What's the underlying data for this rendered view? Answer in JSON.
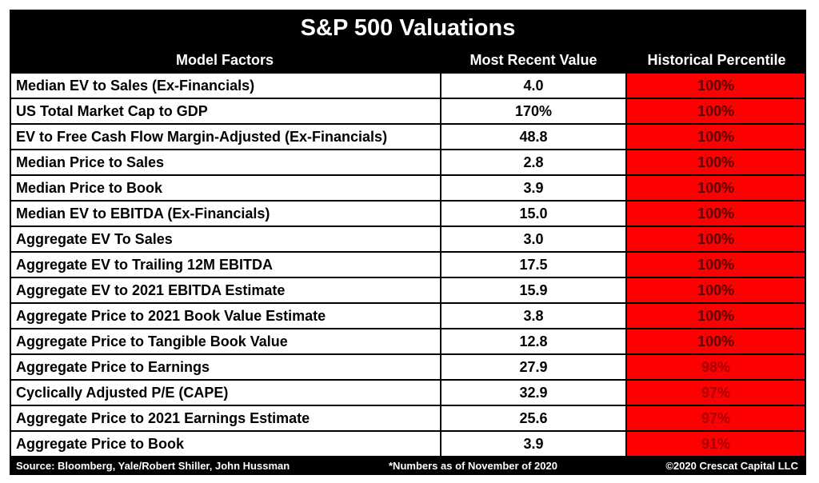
{
  "title": "S&P 500 Valuations",
  "headers": {
    "factor": "Model Factors",
    "value": "Most Recent Value",
    "percentile": "Historical Percentile"
  },
  "rows": [
    {
      "factor": "Median EV to Sales (Ex-Financials)",
      "value": "4.0",
      "percentile": "100%"
    },
    {
      "factor": "US Total Market Cap to GDP",
      "value": "170%",
      "percentile": "100%"
    },
    {
      "factor": "EV to Free Cash Flow Margin-Adjusted (Ex-Financials)",
      "value": "48.8",
      "percentile": "100%"
    },
    {
      "factor": "Median Price to Sales",
      "value": "2.8",
      "percentile": "100%"
    },
    {
      "factor": "Median Price to Book",
      "value": "3.9",
      "percentile": "100%"
    },
    {
      "factor": "Median EV to EBITDA (Ex-Financials)",
      "value": "15.0",
      "percentile": "100%"
    },
    {
      "factor": "Aggregate EV To Sales",
      "value": "3.0",
      "percentile": "100%"
    },
    {
      "factor": "Aggregate EV to Trailing 12M EBITDA",
      "value": "17.5",
      "percentile": "100%"
    },
    {
      "factor": "Aggregate EV to 2021 EBITDA Estimate",
      "value": "15.9",
      "percentile": "100%"
    },
    {
      "factor": "Aggregate Price to 2021 Book Value Estimate",
      "value": "3.8",
      "percentile": "100%"
    },
    {
      "factor": "Aggregate Price to Tangible Book Value",
      "value": "12.8",
      "percentile": "100%"
    },
    {
      "factor": "Aggregate Price to Earnings",
      "value": "27.9",
      "percentile": "98%"
    },
    {
      "factor": "Cyclically Adjusted P/E (CAPE)",
      "value": "32.9",
      "percentile": "97%"
    },
    {
      "factor": "Aggregate Price to 2021 Earnings Estimate",
      "value": "25.6",
      "percentile": "97%"
    },
    {
      "factor": "Aggregate Price to Book",
      "value": "3.9",
      "percentile": "91%"
    }
  ],
  "footer": {
    "source": "Source: Bloomberg, Yale/Robert Shiller, John Hussman",
    "note": "*Numbers as of November of 2020",
    "copyright": "©2020 Crescat Capital LLC"
  },
  "colors": {
    "frame": "#000000",
    "percentile_fill": "#ff0000",
    "percentile_text_100": "#5a0000",
    "percentile_text_below_100": "#a80000"
  }
}
